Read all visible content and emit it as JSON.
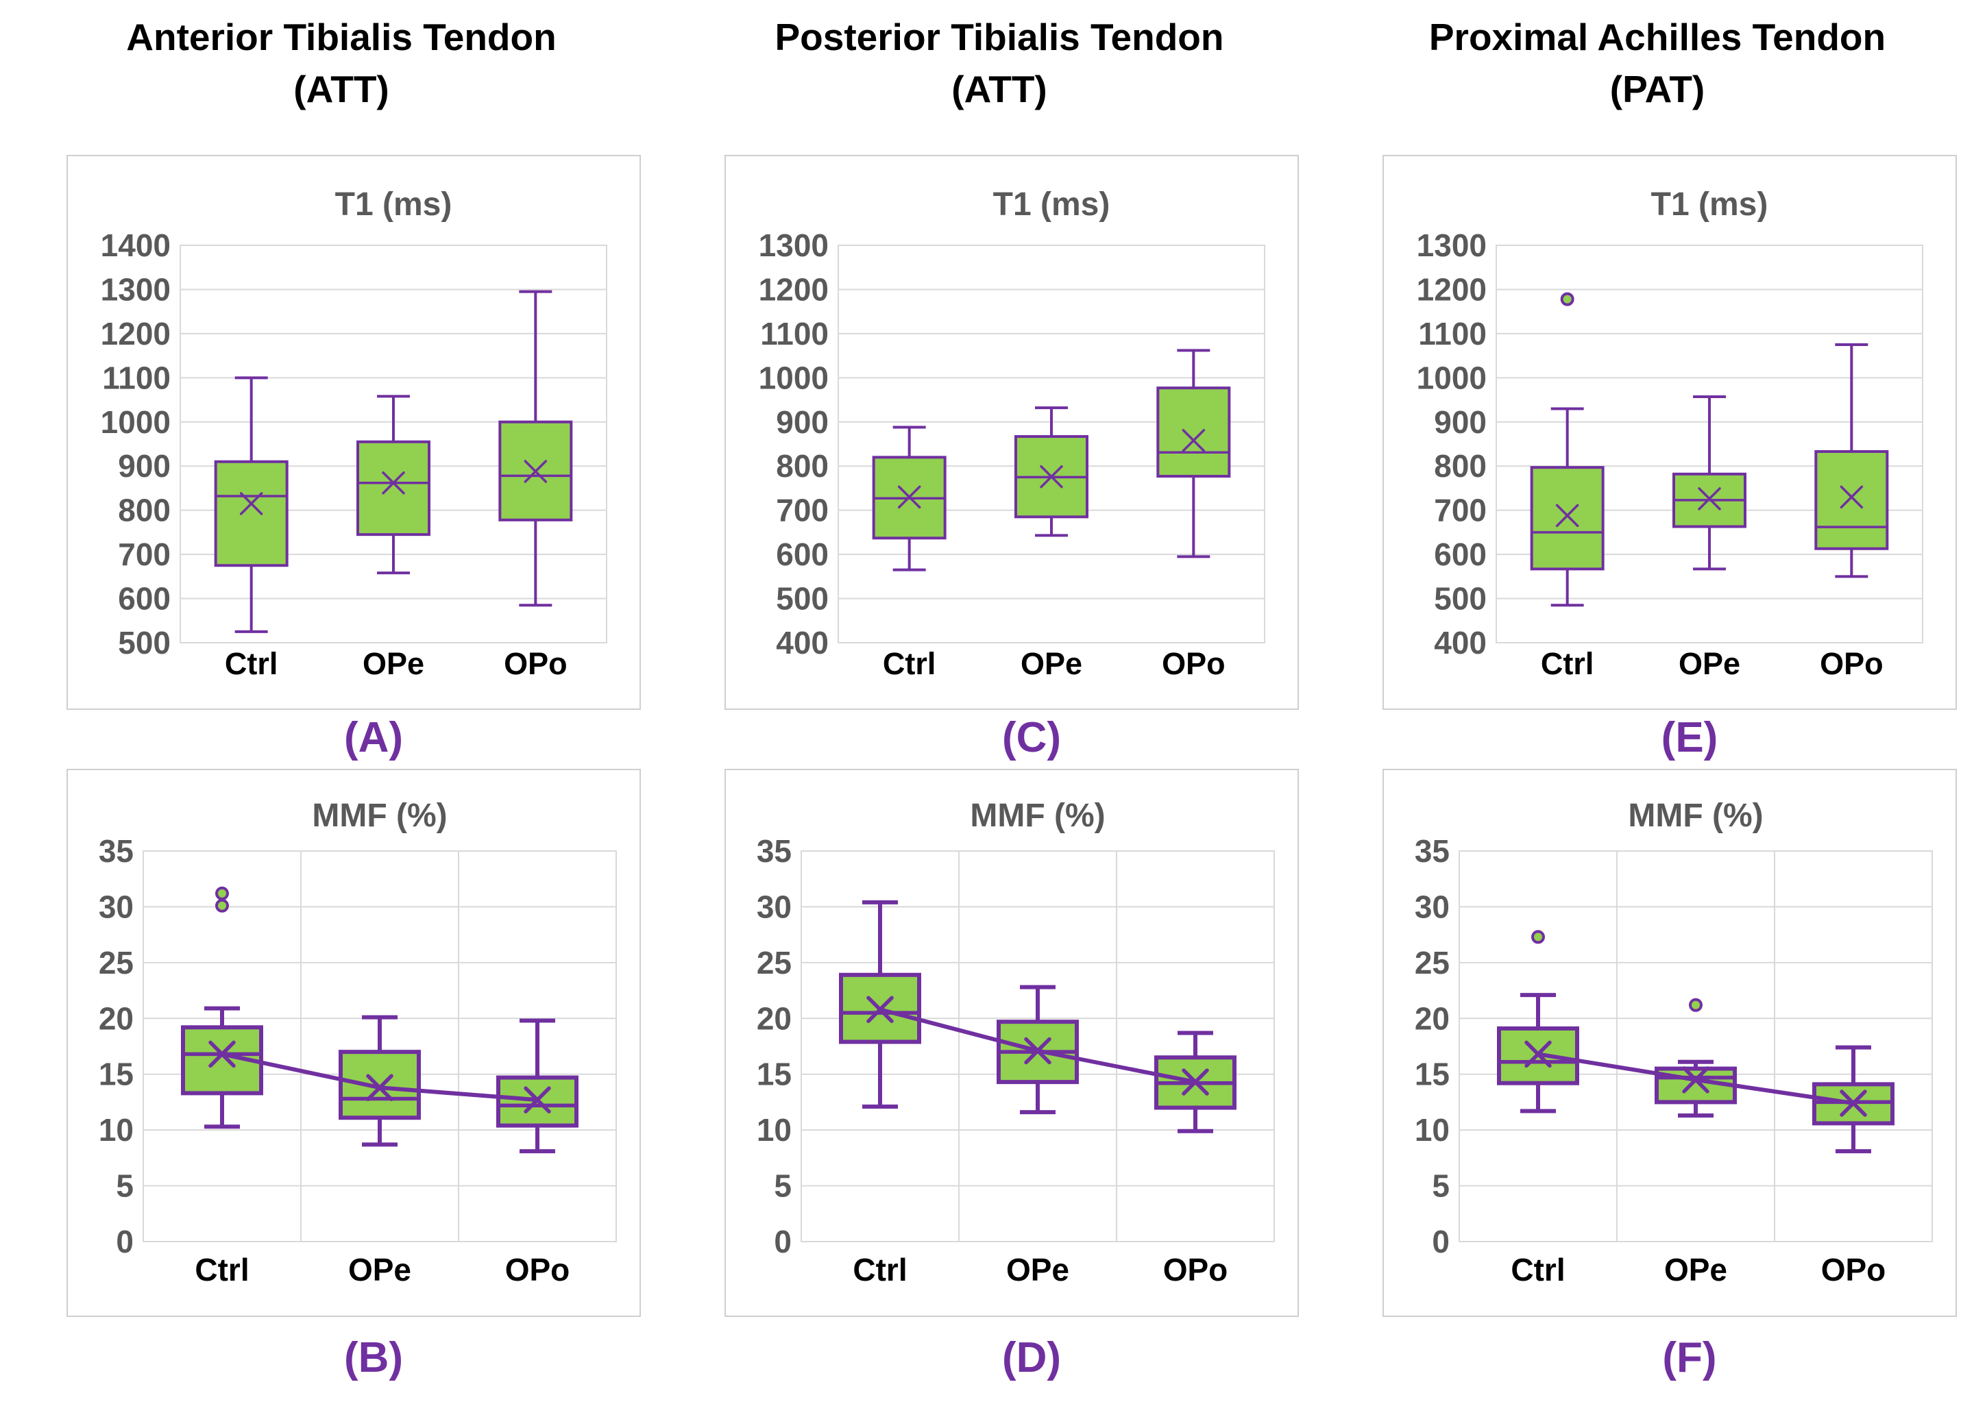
{
  "figure": {
    "columns": [
      {
        "title": "Anterior Tibialis Tendon",
        "subtitle": "(ATT)",
        "panel_labels": {
          "top": "(A)",
          "bottom": "(B)"
        }
      },
      {
        "title": "Posterior Tibialis Tendon",
        "subtitle": "(ATT)",
        "panel_labels": {
          "top": "(C)",
          "bottom": "(D)"
        }
      },
      {
        "title": "Proximal Achilles Tendon",
        "subtitle": "(PAT)",
        "panel_labels": {
          "top": "(E)",
          "bottom": "(F)"
        }
      }
    ]
  },
  "colors": {
    "box_fill": "#92d050",
    "box_stroke": "#7030a0",
    "grid": "#d9d9d9",
    "axis_text": "#595959",
    "title_text": "#595959",
    "category_text": "#000000",
    "panel_label_text": "#7030a0",
    "panel_border": "#cfcfcf"
  },
  "chart_data": [
    {
      "panel": "A",
      "position": "top",
      "type": "box",
      "tendon": "Anterior Tibialis Tendon (ATT)",
      "title": "T1 (ms)",
      "categories": [
        "Ctrl",
        "OPe",
        "OPo"
      ],
      "ylim": [
        500,
        1400
      ],
      "ytick_step": 100,
      "grid": {
        "horizontal": true,
        "vertical": false
      },
      "mean_marker": "x",
      "mean_trendline": false,
      "boxes": [
        {
          "category": "Ctrl",
          "whisker_low": 525,
          "q1": 675,
          "median": 832,
          "mean": 815,
          "q3": 910,
          "whisker_high": 1100,
          "outliers": []
        },
        {
          "category": "OPe",
          "whisker_low": 658,
          "q1": 745,
          "median": 862,
          "mean": 862,
          "q3": 955,
          "whisker_high": 1058,
          "outliers": []
        },
        {
          "category": "OPo",
          "whisker_low": 585,
          "q1": 778,
          "median": 878,
          "mean": 888,
          "q3": 1000,
          "whisker_high": 1295,
          "outliers": []
        }
      ]
    },
    {
      "panel": "B",
      "position": "bottom",
      "type": "box",
      "tendon": "Anterior Tibialis Tendon (ATT)",
      "title": "MMF (%)",
      "categories": [
        "Ctrl",
        "OPe",
        "OPo"
      ],
      "ylim": [
        0,
        35
      ],
      "ytick_step": 5,
      "grid": {
        "horizontal": true,
        "vertical": true
      },
      "mean_marker": "x",
      "mean_trendline": true,
      "boxes": [
        {
          "category": "Ctrl",
          "whisker_low": 10.3,
          "q1": 13.3,
          "median": 16.8,
          "mean": 16.8,
          "q3": 19.2,
          "whisker_high": 20.9,
          "outliers": [
            30.1,
            31.2
          ]
        },
        {
          "category": "OPe",
          "whisker_low": 8.7,
          "q1": 11.1,
          "median": 12.8,
          "mean": 13.8,
          "q3": 17.0,
          "whisker_high": 20.1,
          "outliers": []
        },
        {
          "category": "OPo",
          "whisker_low": 8.1,
          "q1": 10.4,
          "median": 12.2,
          "mean": 12.7,
          "q3": 14.7,
          "whisker_high": 19.8,
          "outliers": []
        }
      ]
    },
    {
      "panel": "C",
      "position": "top",
      "type": "box",
      "tendon": "Posterior Tibialis Tendon (ATT)",
      "title": "T1 (ms)",
      "categories": [
        "Ctrl",
        "OPe",
        "OPo"
      ],
      "ylim": [
        400,
        1300
      ],
      "ytick_step": 100,
      "grid": {
        "horizontal": true,
        "vertical": false
      },
      "mean_marker": "x",
      "mean_trendline": false,
      "boxes": [
        {
          "category": "Ctrl",
          "whisker_low": 565,
          "q1": 637,
          "median": 727,
          "mean": 730,
          "q3": 820,
          "whisker_high": 888,
          "outliers": []
        },
        {
          "category": "OPe",
          "whisker_low": 643,
          "q1": 685,
          "median": 775,
          "mean": 776,
          "q3": 867,
          "whisker_high": 932,
          "outliers": []
        },
        {
          "category": "OPo",
          "whisker_low": 595,
          "q1": 777,
          "median": 831,
          "mean": 858,
          "q3": 977,
          "whisker_high": 1062,
          "outliers": []
        }
      ]
    },
    {
      "panel": "D",
      "position": "bottom",
      "type": "box",
      "tendon": "Posterior Tibialis Tendon (ATT)",
      "title": "MMF (%)",
      "categories": [
        "Ctrl",
        "OPe",
        "OPo"
      ],
      "ylim": [
        0,
        35
      ],
      "ytick_step": 5,
      "grid": {
        "horizontal": true,
        "vertical": true
      },
      "mean_marker": "x",
      "mean_trendline": true,
      "boxes": [
        {
          "category": "Ctrl",
          "whisker_low": 12.1,
          "q1": 17.9,
          "median": 20.5,
          "mean": 20.8,
          "q3": 23.9,
          "whisker_high": 30.4,
          "outliers": []
        },
        {
          "category": "OPe",
          "whisker_low": 11.6,
          "q1": 14.3,
          "median": 17.0,
          "mean": 17.1,
          "q3": 19.7,
          "whisker_high": 22.8,
          "outliers": []
        },
        {
          "category": "OPo",
          "whisker_low": 9.9,
          "q1": 12.0,
          "median": 14.2,
          "mean": 14.3,
          "q3": 16.5,
          "whisker_high": 18.7,
          "outliers": []
        }
      ]
    },
    {
      "panel": "E",
      "position": "top",
      "type": "box",
      "tendon": "Proximal Achilles Tendon (PAT)",
      "title": "T1 (ms)",
      "categories": [
        "Ctrl",
        "OPe",
        "OPo"
      ],
      "ylim": [
        400,
        1300
      ],
      "ytick_step": 100,
      "grid": {
        "horizontal": true,
        "vertical": false
      },
      "mean_marker": "x",
      "mean_trendline": false,
      "boxes": [
        {
          "category": "Ctrl",
          "whisker_low": 485,
          "q1": 567,
          "median": 650,
          "mean": 688,
          "q3": 797,
          "whisker_high": 930,
          "outliers": [
            1178
          ]
        },
        {
          "category": "OPe",
          "whisker_low": 567,
          "q1": 663,
          "median": 723,
          "mean": 726,
          "q3": 782,
          "whisker_high": 957,
          "outliers": []
        },
        {
          "category": "OPo",
          "whisker_low": 550,
          "q1": 613,
          "median": 662,
          "mean": 730,
          "q3": 833,
          "whisker_high": 1075,
          "outliers": []
        }
      ]
    },
    {
      "panel": "F",
      "position": "bottom",
      "type": "box",
      "tendon": "Proximal Achilles Tendon (PAT)",
      "title": "MMF (%)",
      "categories": [
        "Ctrl",
        "OPe",
        "OPo"
      ],
      "ylim": [
        0,
        35
      ],
      "ytick_step": 5,
      "grid": {
        "horizontal": true,
        "vertical": true
      },
      "mean_marker": "x",
      "mean_trendline": true,
      "boxes": [
        {
          "category": "Ctrl",
          "whisker_low": 11.7,
          "q1": 14.2,
          "median": 16.1,
          "mean": 16.8,
          "q3": 19.1,
          "whisker_high": 22.1,
          "outliers": [
            27.3
          ]
        },
        {
          "category": "OPe",
          "whisker_low": 11.3,
          "q1": 12.5,
          "median": 14.7,
          "mean": 14.5,
          "q3": 15.5,
          "whisker_high": 16.1,
          "outliers": [
            21.2
          ]
        },
        {
          "category": "OPo",
          "whisker_low": 8.1,
          "q1": 10.6,
          "median": 12.5,
          "mean": 12.4,
          "q3": 14.1,
          "whisker_high": 17.4,
          "outliers": []
        }
      ]
    }
  ]
}
